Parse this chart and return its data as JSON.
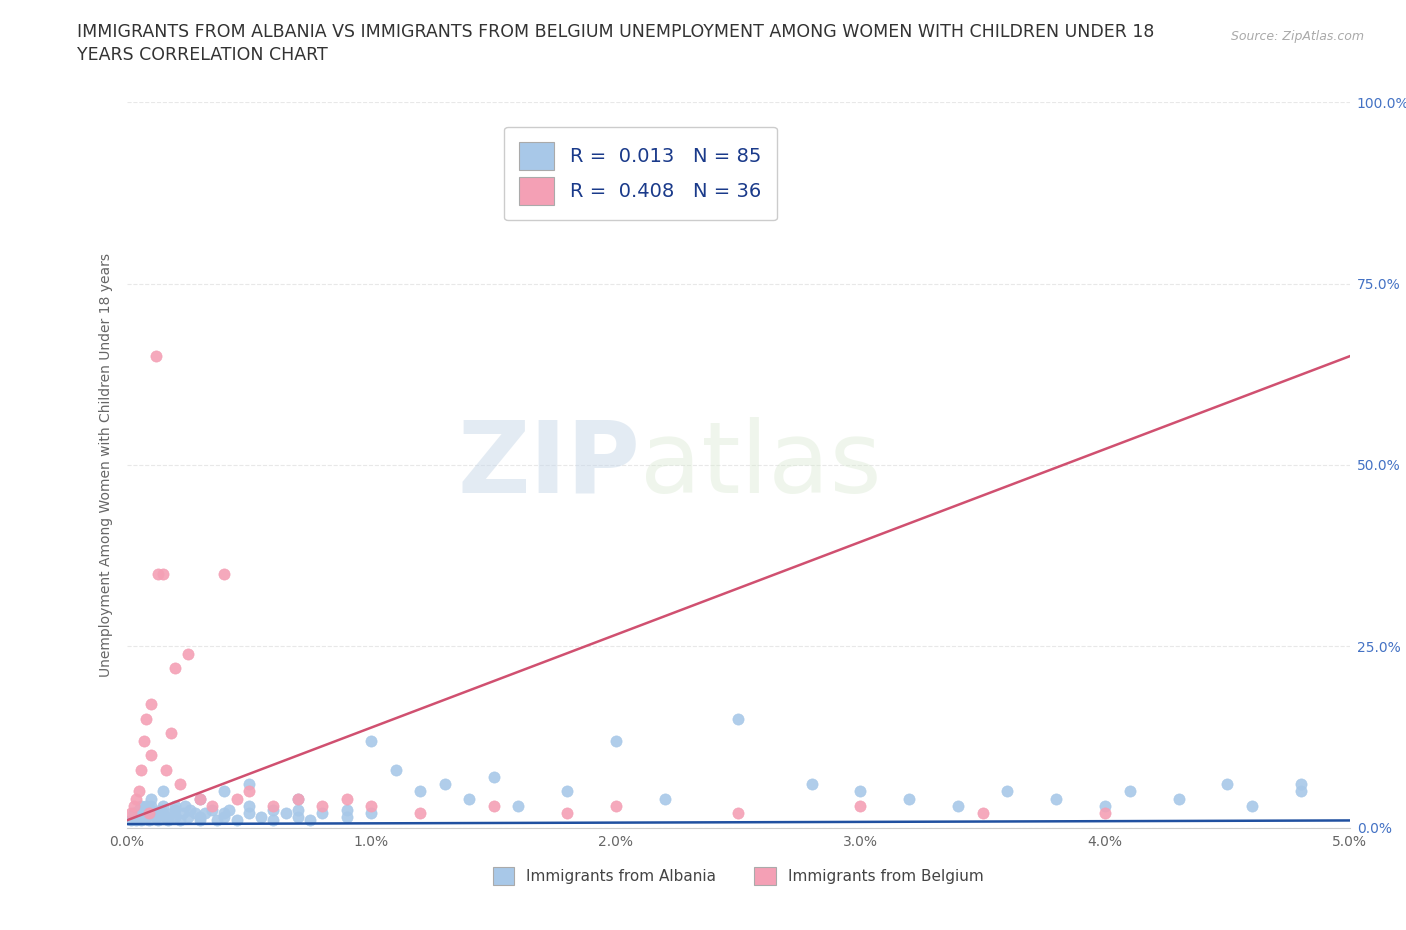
{
  "title_line1": "IMMIGRANTS FROM ALBANIA VS IMMIGRANTS FROM BELGIUM UNEMPLOYMENT AMONG WOMEN WITH CHILDREN UNDER 18",
  "title_line2": "YEARS CORRELATION CHART",
  "source": "Source: ZipAtlas.com",
  "ylabel": "Unemployment Among Women with Children Under 18 years",
  "xlabel_albania": "Immigrants from Albania",
  "xlabel_belgium": "Immigrants from Belgium",
  "xlim": [
    0.0,
    0.05
  ],
  "ylim": [
    0.0,
    1.0
  ],
  "xticks": [
    0.0,
    0.01,
    0.02,
    0.03,
    0.04,
    0.05
  ],
  "xtick_labels": [
    "0.0%",
    "1.0%",
    "2.0%",
    "3.0%",
    "4.0%",
    "5.0%"
  ],
  "yticks": [
    0.0,
    0.25,
    0.5,
    0.75,
    1.0
  ],
  "ytick_labels": [
    "0.0%",
    "25.0%",
    "50.0%",
    "75.0%",
    "100.0%"
  ],
  "albania_R": 0.013,
  "albania_N": 85,
  "belgium_R": 0.408,
  "belgium_N": 36,
  "albania_color": "#a8c8e8",
  "belgium_color": "#f4a0b5",
  "albania_line_color": "#2050a0",
  "belgium_line_color": "#d05070",
  "watermark_zip": "ZIP",
  "watermark_atlas": "atlas",
  "background_color": "#ffffff",
  "grid_color": "#e8e8e8",
  "title_color": "#333333",
  "ytick_color": "#4472c4",
  "xtick_color": "#666666",
  "title_fontsize": 12.5,
  "ylabel_fontsize": 10,
  "tick_fontsize": 10,
  "legend_upper_fontsize": 14,
  "legend_lower_fontsize": 11,
  "source_fontsize": 9,
  "albania_scatter_x": [
    0.0002,
    0.0003,
    0.0004,
    0.0005,
    0.0005,
    0.0006,
    0.0007,
    0.0008,
    0.0008,
    0.0009,
    0.001,
    0.001,
    0.001,
    0.0012,
    0.0012,
    0.0013,
    0.0014,
    0.0015,
    0.0015,
    0.0016,
    0.0017,
    0.0018,
    0.002,
    0.002,
    0.0022,
    0.0023,
    0.0024,
    0.0025,
    0.0026,
    0.0028,
    0.003,
    0.003,
    0.0032,
    0.0035,
    0.0037,
    0.004,
    0.004,
    0.0042,
    0.0045,
    0.005,
    0.005,
    0.0055,
    0.006,
    0.006,
    0.0065,
    0.007,
    0.007,
    0.0075,
    0.008,
    0.009,
    0.009,
    0.01,
    0.01,
    0.011,
    0.012,
    0.013,
    0.014,
    0.015,
    0.016,
    0.018,
    0.02,
    0.022,
    0.025,
    0.028,
    0.03,
    0.032,
    0.034,
    0.036,
    0.038,
    0.04,
    0.041,
    0.043,
    0.045,
    0.046,
    0.048,
    0.0003,
    0.0006,
    0.001,
    0.0015,
    0.002,
    0.003,
    0.004,
    0.005,
    0.007,
    0.048
  ],
  "albania_scatter_y": [
    0.01,
    0.02,
    0.01,
    0.015,
    0.025,
    0.01,
    0.02,
    0.015,
    0.03,
    0.01,
    0.02,
    0.025,
    0.03,
    0.015,
    0.02,
    0.01,
    0.025,
    0.02,
    0.03,
    0.015,
    0.01,
    0.02,
    0.025,
    0.015,
    0.01,
    0.02,
    0.03,
    0.015,
    0.025,
    0.02,
    0.01,
    0.015,
    0.02,
    0.025,
    0.01,
    0.02,
    0.015,
    0.025,
    0.01,
    0.02,
    0.03,
    0.015,
    0.025,
    0.01,
    0.02,
    0.015,
    0.025,
    0.01,
    0.02,
    0.025,
    0.015,
    0.02,
    0.12,
    0.08,
    0.05,
    0.06,
    0.04,
    0.07,
    0.03,
    0.05,
    0.12,
    0.04,
    0.15,
    0.06,
    0.05,
    0.04,
    0.03,
    0.05,
    0.04,
    0.03,
    0.05,
    0.04,
    0.06,
    0.03,
    0.05,
    0.02,
    0.03,
    0.04,
    0.05,
    0.03,
    0.04,
    0.05,
    0.06,
    0.04,
    0.06
  ],
  "belgium_scatter_x": [
    0.0002,
    0.0003,
    0.0004,
    0.0005,
    0.0006,
    0.0007,
    0.0008,
    0.0009,
    0.001,
    0.001,
    0.0012,
    0.0013,
    0.0015,
    0.0016,
    0.0018,
    0.002,
    0.0022,
    0.0025,
    0.003,
    0.0035,
    0.004,
    0.0045,
    0.005,
    0.006,
    0.007,
    0.008,
    0.009,
    0.01,
    0.012,
    0.015,
    0.018,
    0.02,
    0.025,
    0.03,
    0.035,
    0.04
  ],
  "belgium_scatter_y": [
    0.02,
    0.03,
    0.04,
    0.05,
    0.08,
    0.12,
    0.15,
    0.02,
    0.17,
    0.1,
    0.65,
    0.35,
    0.35,
    0.08,
    0.13,
    0.22,
    0.06,
    0.24,
    0.04,
    0.03,
    0.35,
    0.04,
    0.05,
    0.03,
    0.04,
    0.03,
    0.04,
    0.03,
    0.02,
    0.03,
    0.02,
    0.03,
    0.02,
    0.03,
    0.02,
    0.02
  ]
}
